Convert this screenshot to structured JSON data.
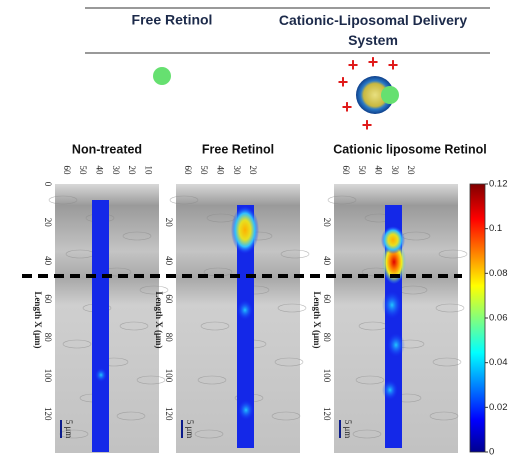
{
  "header": {
    "columns": [
      "Free Retinol",
      "Cationic-Liposomal Delivery System"
    ]
  },
  "panels": [
    {
      "title": "Non-treated",
      "top_ticks": [
        60,
        50,
        40,
        30,
        20,
        10
      ],
      "depth_ticks": [
        0,
        20,
        40,
        60,
        80,
        100,
        120
      ]
    },
    {
      "title": "Free Retinol",
      "top_ticks": [
        60,
        50,
        40,
        30,
        20
      ],
      "depth_ticks": [
        20,
        40,
        60,
        80,
        100,
        120
      ]
    },
    {
      "title": "Cationic liposome Retinol",
      "top_ticks": [
        60,
        50,
        40,
        30,
        20
      ],
      "depth_ticks": [
        20,
        40,
        60,
        80,
        100,
        120
      ]
    }
  ],
  "depth_label": "Length X (μm)",
  "scale_bar": "5 μm",
  "colorbar": {
    "lim": [
      0,
      0.12
    ],
    "ticks": [
      0,
      0.02,
      0.04,
      0.06,
      0.08,
      0.1,
      0.12
    ]
  }
}
